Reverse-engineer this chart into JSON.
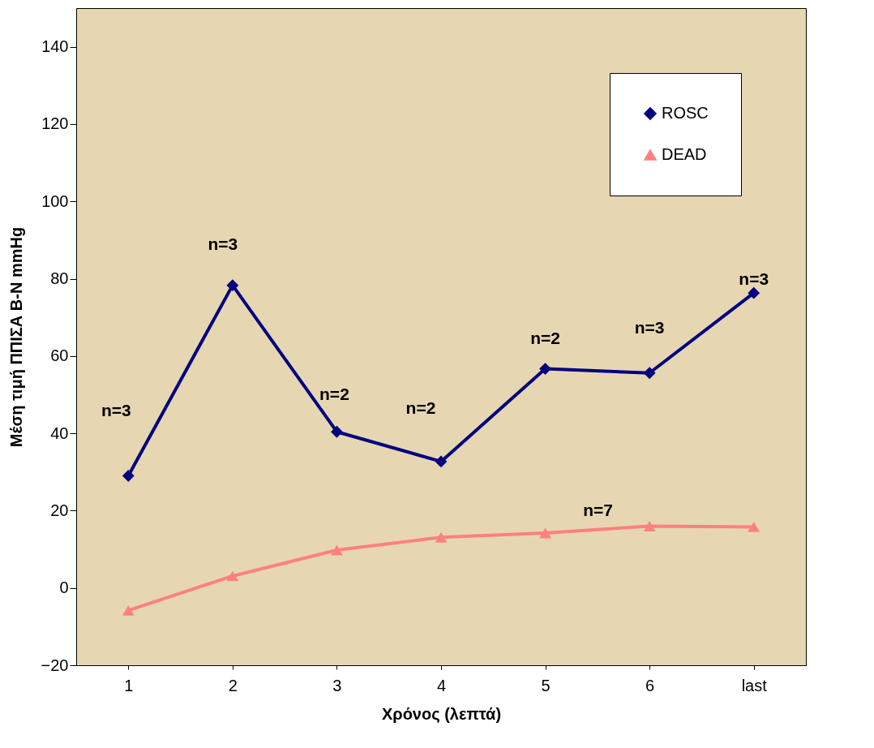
{
  "chart_data": {
    "type": "line",
    "xlabel": "Χρόνος (λεπτά)",
    "ylabel": "Μέση τιμή ΠΠΙΣΑ Β-Ν mmHg",
    "categories": [
      "1",
      "2",
      "3",
      "4",
      "5",
      "6",
      "last"
    ],
    "series": [
      {
        "name": "ROSC",
        "color": "#000080",
        "marker": "diamond",
        "values": [
          29,
          78.3,
          40.4,
          32.7,
          56.7,
          55.6,
          76.3
        ]
      },
      {
        "name": "DEAD",
        "color": "#ff8080",
        "marker": "triangle",
        "values": [
          -5.8,
          3.1,
          9.8,
          13.1,
          14.2,
          16,
          15.8
        ]
      }
    ],
    "ylim": [
      -20,
      150
    ],
    "yticks": [
      -20,
      0,
      20,
      40,
      60,
      80,
      100,
      120,
      140
    ],
    "grid": false,
    "legend": "top right",
    "line_style": "solid",
    "annotations": [
      "n=3",
      "n=3",
      "n=2",
      "n=2",
      "n=2",
      "n=3",
      "n=3",
      "n=7"
    ]
  }
}
